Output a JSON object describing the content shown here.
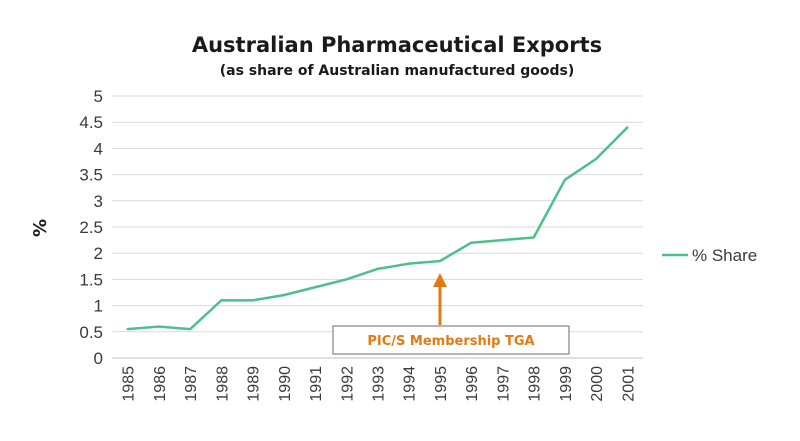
{
  "chart_data": {
    "type": "line",
    "title": "Australian Pharmaceutical Exports",
    "subtitle": "(as share of Australian manufactured goods)",
    "xlabel": "",
    "ylabel": "%",
    "categories": [
      "1985",
      "1986",
      "1987",
      "1988",
      "1989",
      "1990",
      "1991",
      "1992",
      "1993",
      "1994",
      "1995",
      "1996",
      "1997",
      "1998",
      "1999",
      "2000",
      "2001"
    ],
    "series": [
      {
        "name": "% Share",
        "color": "#4dbf8a",
        "values": [
          0.55,
          0.6,
          0.55,
          1.1,
          1.1,
          1.2,
          1.35,
          1.5,
          1.7,
          1.8,
          1.85,
          2.2,
          2.25,
          2.3,
          3.4,
          3.8,
          4.4
        ]
      }
    ],
    "ylim": [
      0,
      5
    ],
    "yticks": [
      "0",
      "0.5",
      "1",
      "1.5",
      "2",
      "2.5",
      "3",
      "3.5",
      "4",
      "4.5",
      "5"
    ],
    "grid": true,
    "legend_position": "right",
    "annotation": {
      "text": "PIC/S Membership TGA",
      "x": "1995",
      "color": "#e07b14"
    }
  }
}
